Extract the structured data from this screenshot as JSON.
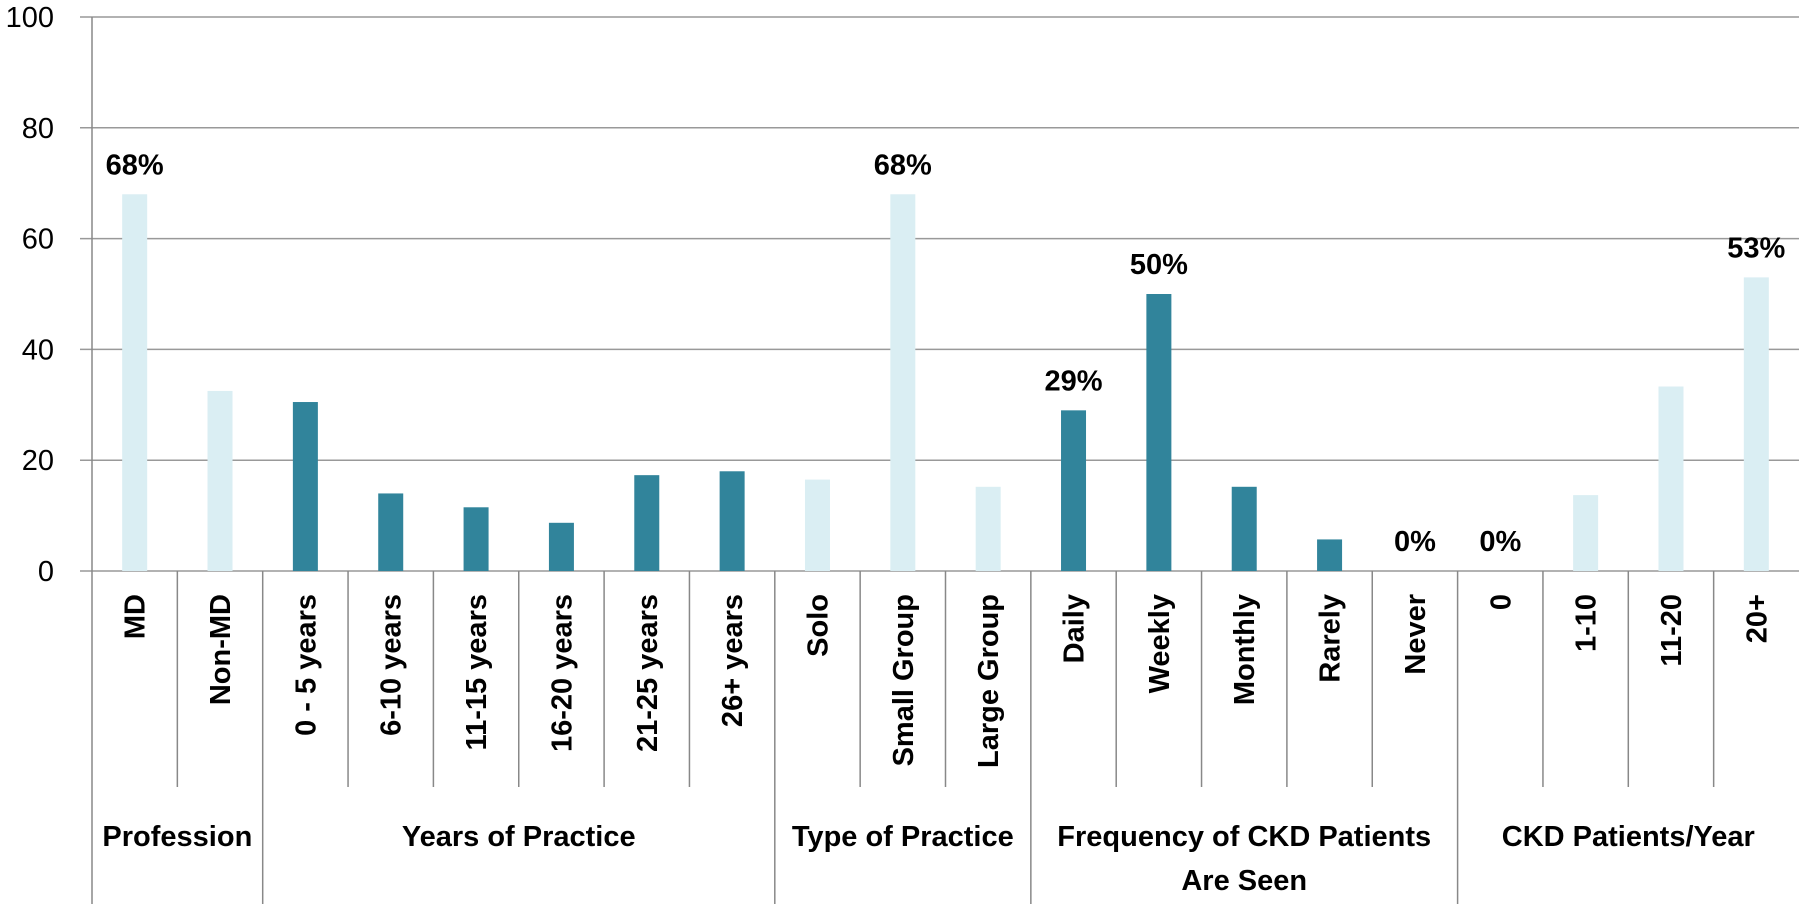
{
  "chart_data": {
    "type": "bar",
    "ylim": [
      0,
      100
    ],
    "yticks": [
      0,
      20,
      40,
      60,
      80,
      100
    ],
    "grid": true,
    "groups": [
      {
        "name": "Profession",
        "color": "#daeef3",
        "categories": [
          "MD",
          "Non-MD"
        ],
        "values": [
          68,
          32.5
        ],
        "value_labels": [
          "68%",
          null
        ]
      },
      {
        "name": "Years of Practice",
        "color": "#31849b",
        "categories": [
          "0 - 5 years",
          "6-10 years",
          "11-15 years",
          "16-20 years",
          "21-25 years",
          "26+ years"
        ],
        "values": [
          30.5,
          14,
          11.5,
          8.7,
          17.3,
          18
        ],
        "value_labels": [
          null,
          null,
          null,
          null,
          null,
          null
        ]
      },
      {
        "name": "Type of Practice",
        "color": "#daeef3",
        "categories": [
          "Solo",
          "Small Group",
          "Large Group"
        ],
        "values": [
          16.5,
          68,
          15.2
        ],
        "value_labels": [
          null,
          "68%",
          null
        ]
      },
      {
        "name": "Frequency of CKD Patients Are Seen",
        "color": "#31849b",
        "categories": [
          "Daily",
          "Weekly",
          "Monthly",
          "Rarely",
          "Never"
        ],
        "values": [
          29,
          50,
          15.2,
          5.7,
          0
        ],
        "value_labels": [
          "29%",
          "50%",
          null,
          null,
          "0%"
        ]
      },
      {
        "name": "CKD Patients/Year",
        "color": "#daeef3",
        "categories": [
          "0",
          "1-10",
          "11-20",
          "20+"
        ],
        "values": [
          0,
          13.7,
          33.3,
          53
        ],
        "value_labels": [
          "0%",
          null,
          null,
          "53%"
        ]
      }
    ]
  }
}
